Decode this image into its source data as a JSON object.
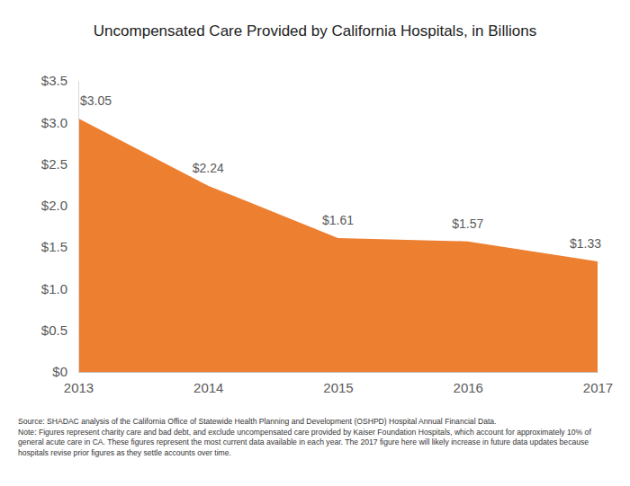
{
  "chart_data": {
    "type": "area",
    "title": "Uncompensated Care Provided by California Hospitals, in Billions",
    "x": [
      2013,
      2014,
      2015,
      2016,
      2017
    ],
    "values": [
      3.05,
      2.24,
      1.61,
      1.57,
      1.33
    ],
    "value_labels": [
      "$3.05",
      "$2.24",
      "$1.61",
      "$1.57",
      "$1.33"
    ],
    "color": "#ed7f31",
    "xlim": [
      2013,
      2017
    ],
    "xticks": [
      2013,
      2014,
      2015,
      2016,
      2017
    ],
    "ylim": [
      0,
      3.5
    ],
    "yticks": [
      {
        "value": 0,
        "label": "$0"
      },
      {
        "value": 0.5,
        "label": "$0.5"
      },
      {
        "value": 1,
        "label": "$1.0"
      },
      {
        "value": 1.5,
        "label": "$1.5"
      },
      {
        "value": 2,
        "label": "$2.0"
      },
      {
        "value": 2.5,
        "label": "$2.5"
      },
      {
        "value": 3,
        "label": "$3.0"
      },
      {
        "value": 3.5,
        "label": "$3.5"
      }
    ],
    "grid": false,
    "data_labels": true,
    "source": "Source: SHADAC analysis of the California Office of Statewide Health Planning and Development (OSHPD) Hospital Annual Financial Data.",
    "note": "Note: Figures represent charity care and bad debt, and exclude uncompensated care provided by Kaiser Foundation Hospitals, which account for approximately 10% of general acute care in CA. These figures represent the most current data available in each year. The 2017 figure here will likely increase in future data updates because hospitals revise prior figures as they settle accounts over time."
  }
}
